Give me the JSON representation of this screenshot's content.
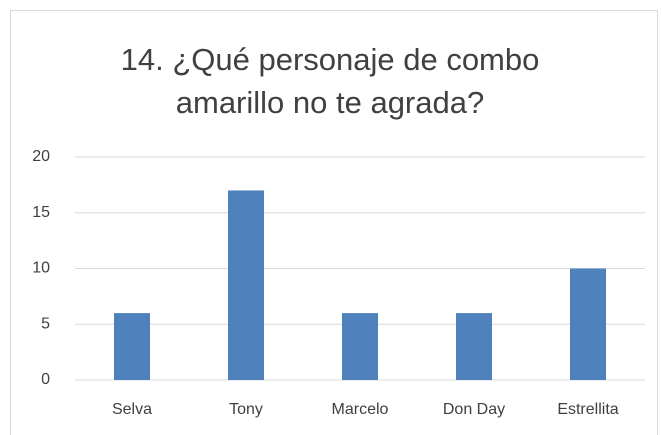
{
  "chart_data": {
    "type": "bar",
    "title": "14. ¿Qué personaje de combo amarillo no te agrada?",
    "categories": [
      "Selva",
      "Tony",
      "Marcelo",
      "Don Day",
      "Estrellita"
    ],
    "values": [
      6,
      17,
      6,
      6,
      10
    ],
    "color": "#4f81bd",
    "ylim": [
      0,
      20
    ],
    "yticks": [
      0,
      5,
      10,
      15,
      20
    ],
    "grid": true
  }
}
